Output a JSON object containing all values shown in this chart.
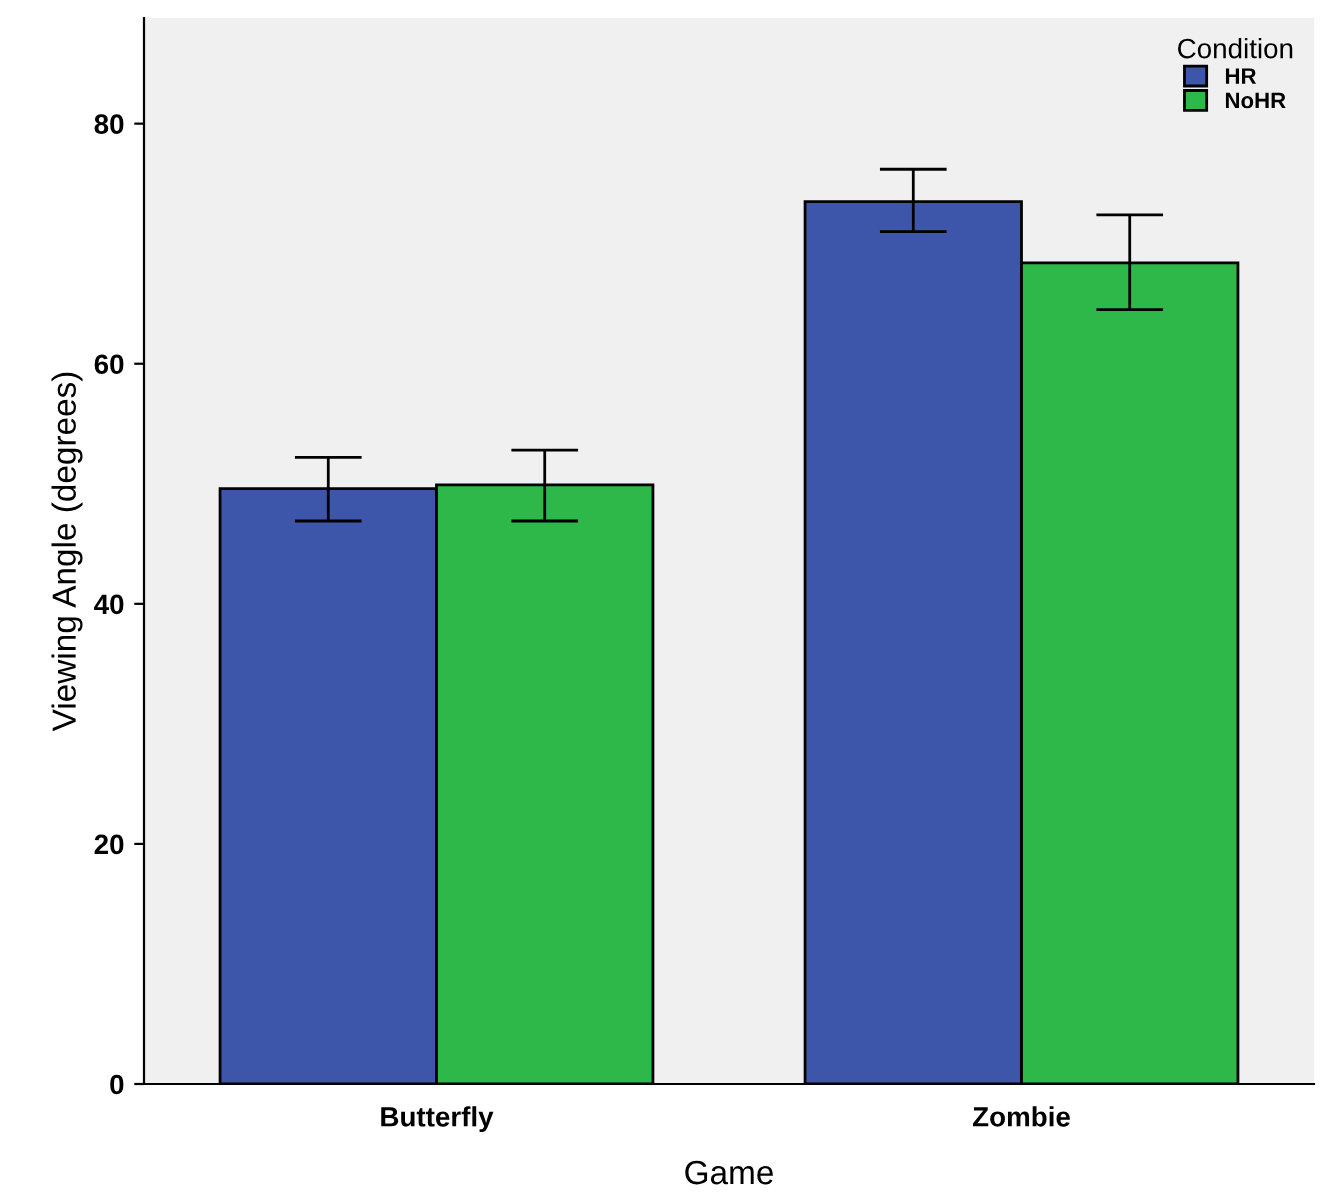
{
  "chart_data": {
    "type": "bar",
    "xlabel": "Game",
    "ylabel": "Viewing Angle (degrees)",
    "legend_title": "Condition",
    "categories": [
      "Butterfly",
      "Zombie"
    ],
    "series": [
      {
        "name": "HR",
        "color": "#3e56a9",
        "values": [
          49.6,
          73.5
        ],
        "errors": [
          [
            46.9,
            52.2
          ],
          [
            71.0,
            76.2
          ]
        ]
      },
      {
        "name": "NoHR",
        "color": "#2fb84a",
        "values": [
          49.9,
          68.4
        ],
        "errors": [
          [
            46.9,
            52.8
          ],
          [
            64.5,
            72.4
          ]
        ]
      }
    ],
    "ylim": [
      0,
      88.8
    ],
    "yticks": [
      0,
      20,
      40,
      60,
      80
    ],
    "grid": false,
    "legend": "top right"
  }
}
